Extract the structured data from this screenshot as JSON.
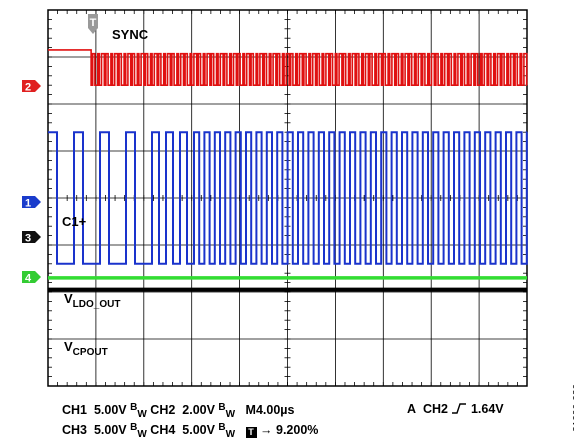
{
  "chart_data": {
    "type": "line",
    "title": "",
    "grid": true,
    "xlabel": "",
    "ylabel": "",
    "divisions": {
      "horizontal": 10,
      "vertical": 8
    },
    "labels": {
      "sync": "SYNC",
      "c1": "C1+",
      "vldo_main": "V",
      "vldo_sub": "LDO_OUT",
      "vcp_main": "V",
      "vcp_sub": "CPOUT"
    },
    "channel_markers": [
      {
        "id": "2",
        "color": "#e02020"
      },
      {
        "id": "1",
        "color": "#1a3ccc"
      },
      {
        "id": "3",
        "color": "#111111"
      },
      {
        "id": "4",
        "color": "#33cc33"
      }
    ],
    "trigger_marker": "T",
    "series": [
      {
        "name": "SYNC",
        "color": "#e01010",
        "low_div": 0.85,
        "high_div": 1.6,
        "start_div": 0.9
      },
      {
        "name": "C1+",
        "color": "#1a33cc",
        "low_div": 2.6,
        "high_div": 5.4
      },
      {
        "name": "VLDO_OUT",
        "color": "#33dd33",
        "level_div": 5.7
      },
      {
        "name": "VCPOUT",
        "color": "#000000",
        "level_div": 5.95
      }
    ]
  },
  "readout": {
    "ch1_label": "CH1",
    "ch1_value": "5.00V",
    "ch2_label": "CH2",
    "ch2_value": "2.00V",
    "ch3_label": "CH3",
    "ch3_value": "5.00V",
    "ch4_label": "CH4",
    "ch4_value": "5.00V",
    "bw_main": "B",
    "bw_sub": "W",
    "timebase": "M4.00µs",
    "trigger_label": "A",
    "trigger_channel": "CH2",
    "trigger_slope_icon": "rising-edge-icon",
    "trigger_level": "1.64V",
    "trigger_box": "T",
    "trigger_position": "9.200%"
  },
  "figure_id": "21096-026"
}
